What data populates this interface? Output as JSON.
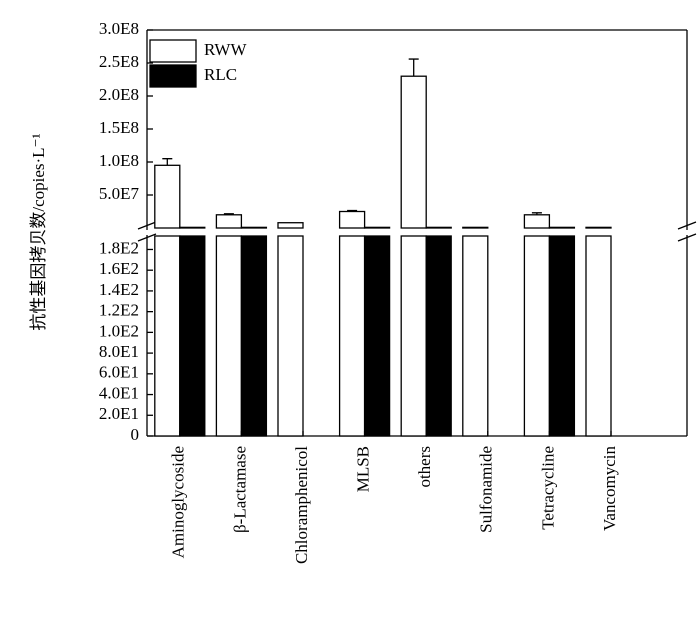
{
  "chart_data": {
    "type": "bar",
    "ylabel": "抗性基因拷贝数/copies·L⁻¹",
    "categories": [
      "Aminoglycoside",
      "β-Lactamase",
      "Chloramphenicol",
      "MLSB",
      "others",
      "Sulfonamide",
      "Tetracycline",
      "Vancomycin"
    ],
    "series": [
      {
        "name": "RWW",
        "color": "#ffffff",
        "values": [
          95000000,
          20000000,
          8000000,
          25000000,
          230000000,
          1000000,
          20000000,
          1000000
        ],
        "errors": [
          10000000,
          1500000,
          null,
          1500000,
          26000000,
          null,
          3000000,
          null
        ]
      },
      {
        "name": "RLC",
        "color": "#000000",
        "values": [
          1000000,
          1000000,
          0,
          1000000,
          1000000,
          0,
          1000000,
          0
        ]
      }
    ],
    "panels": [
      {
        "ylim": [
          0,
          300000000
        ],
        "yticks": [
          {
            "value": 50000000,
            "label": "5.0E7"
          },
          {
            "value": 100000000,
            "label": "1.0E8"
          },
          {
            "value": 150000000,
            "label": "1.5E8"
          },
          {
            "value": 200000000,
            "label": "2.0E8"
          },
          {
            "value": 250000000,
            "label": "2.5E8"
          },
          {
            "value": 300000000,
            "label": "3.0E8"
          }
        ]
      },
      {
        "ylim": [
          0,
          193
        ],
        "yticks": [
          0,
          {
            "value": 20,
            "label": "2.0E1"
          },
          {
            "value": 40,
            "label": "4.0E1"
          },
          {
            "value": 60,
            "label": "6.0E1"
          },
          {
            "value": 80,
            "label": "8.0E1"
          },
          {
            "value": 100,
            "label": "1.0E2"
          },
          {
            "value": 120,
            "label": "1.2E2"
          },
          {
            "value": 140,
            "label": "1.4E2"
          },
          {
            "value": 160,
            "label": "1.6E2"
          },
          {
            "value": 180,
            "label": "1.8E2"
          }
        ]
      }
    ],
    "legend": "upper left"
  }
}
